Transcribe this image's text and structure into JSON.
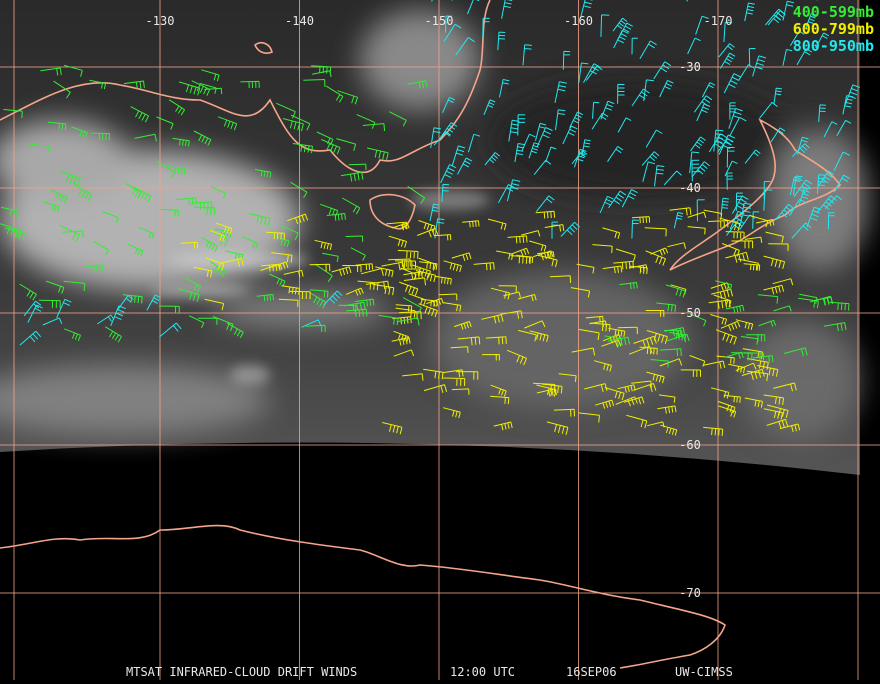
{
  "map": {
    "lon_labels": [
      -130,
      -140,
      -150,
      -160,
      -170
    ],
    "lat_labels": [
      -30,
      -40,
      -50,
      -60,
      -70
    ],
    "legend": [
      {
        "label": "400-599mb",
        "color": "#33ee33"
      },
      {
        "label": "600-799mb",
        "color": "#f0f000"
      },
      {
        "label": "800-950mb",
        "color": "#22e8ee"
      }
    ],
    "caption": {
      "product": "MTSAT INFRARED-CLOUD DRIFT WINDS",
      "time": "12:00 UTC",
      "date": "16SEP06",
      "source": "UW-CIMSS"
    }
  }
}
